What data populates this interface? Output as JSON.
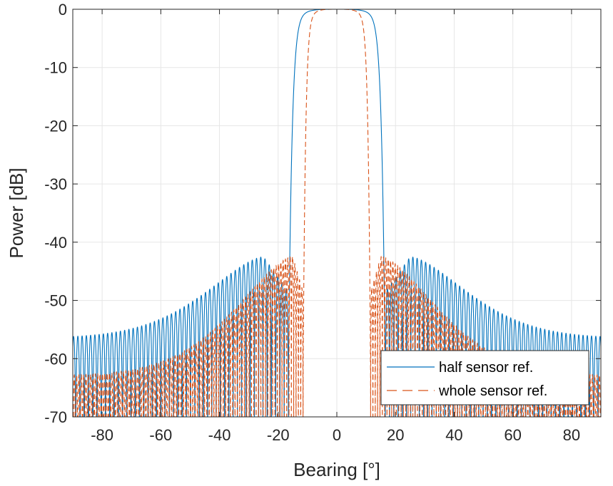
{
  "chart_data": {
    "type": "line",
    "title": "",
    "xlabel": "Bearing [°]",
    "ylabel": "Power [dB]",
    "xlim": [
      -90,
      90
    ],
    "ylim": [
      -70,
      0
    ],
    "xticks": [
      -80,
      -60,
      -40,
      -20,
      0,
      20,
      40,
      60,
      80
    ],
    "yticks": [
      0,
      -10,
      -20,
      -30,
      -40,
      -50,
      -60,
      -70
    ],
    "xtick_labels": [
      "-80",
      "-60",
      "-40",
      "-20",
      "0",
      "20",
      "40",
      "60",
      "80"
    ],
    "ytick_labels": [
      "0",
      "-10",
      "-20",
      "-30",
      "-40",
      "-50",
      "-60",
      "-70"
    ],
    "grid": true,
    "legend_position": "bottom-right",
    "series": [
      {
        "name": "half sensor ref.",
        "color": "#0072BD",
        "style": "solid",
        "mainlobe_half_width_deg": 16.5,
        "first_sidelobe_peak_db": -42.5,
        "first_sidelobe_bearing_deg": 25,
        "edge_level_db": -56.5,
        "ripple_period_deg": 1.45
      },
      {
        "name": "whole sensor ref.",
        "color": "#D95319",
        "style": "dashed",
        "mainlobe_half_width_deg": 11.5,
        "first_sidelobe_peak_db": -42.5,
        "first_sidelobe_bearing_deg": 15,
        "edge_level_db": -63,
        "ripple_period_deg": 0.8
      }
    ]
  }
}
